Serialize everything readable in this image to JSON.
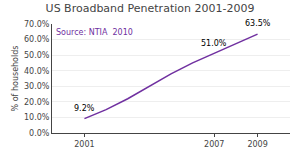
{
  "chart_data": {
    "type": "line",
    "title": "US Broadband Penetration 2001-2009",
    "source": "Source: NTIA  2010",
    "ylabel": "% of households",
    "x": [
      2001,
      2002,
      2003,
      2004,
      2005,
      2006,
      2007,
      2008,
      2009
    ],
    "values": [
      9.2,
      15.0,
      22.0,
      30.0,
      38.0,
      45.0,
      51.0,
      57.5,
      63.5
    ],
    "color": "#7030A0",
    "annotations": [
      {
        "x": 2001,
        "y": 9.2,
        "label": "9.2%"
      },
      {
        "x": 2007,
        "y": 51.0,
        "label": "51.0%"
      },
      {
        "x": 2009,
        "y": 63.5,
        "label": "63.5%"
      }
    ],
    "xlim": [
      1999.5,
      2010.5
    ],
    "xticks": [
      2001,
      2007,
      2009
    ],
    "ylim": [
      0,
      70
    ],
    "yticks": [
      {
        "value": 0,
        "label": "0.0%"
      },
      {
        "value": 10,
        "label": "10.0%"
      },
      {
        "value": 20,
        "label": "20.0%"
      },
      {
        "value": 30,
        "label": "30.0%"
      },
      {
        "value": 40,
        "label": "40.0%"
      },
      {
        "value": 50,
        "label": "50.0%"
      },
      {
        "value": 60,
        "label": "60.0%"
      },
      {
        "value": 70,
        "label": "70.0%"
      }
    ],
    "grid": true
  }
}
